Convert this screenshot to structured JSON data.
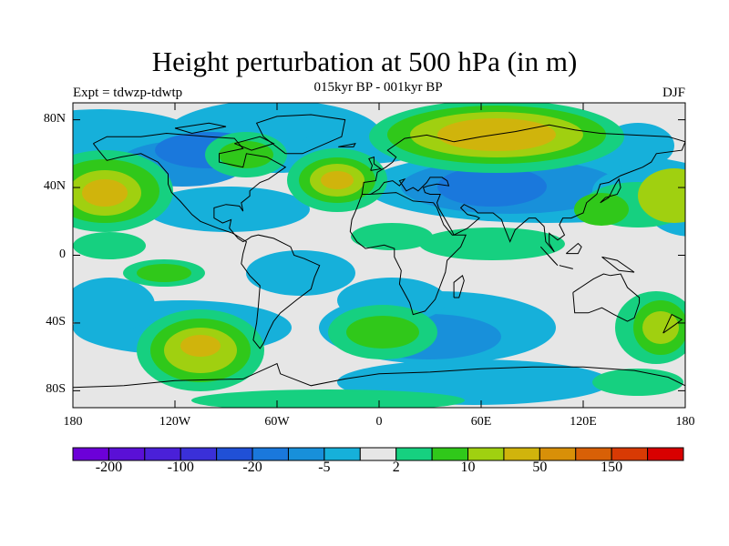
{
  "title": "Height perturbation at 500 hPa (in m)",
  "subtitle": "015kyr BP - 001kyr BP",
  "left_label": "Expt = tdwzp-tdwtp",
  "right_label": "DJF",
  "map": {
    "projection": "cylindrical-equidistant",
    "lon_range": [
      -180,
      180
    ],
    "lat_range": [
      -90,
      90
    ],
    "lat_ticks": [
      {
        "value": 80,
        "label": "80N"
      },
      {
        "value": 40,
        "label": "40N"
      },
      {
        "value": 0,
        "label": "0"
      },
      {
        "value": -40,
        "label": "40S"
      },
      {
        "value": -80,
        "label": "80S"
      }
    ],
    "lon_ticks": [
      {
        "value": -180,
        "label": "180"
      },
      {
        "value": -120,
        "label": "120W"
      },
      {
        "value": -60,
        "label": "60W"
      },
      {
        "value": 0,
        "label": "0"
      },
      {
        "value": 60,
        "label": "60E"
      },
      {
        "value": 120,
        "label": "120E"
      },
      {
        "value": 180,
        "label": "180"
      }
    ],
    "background_color": "#e6e6e6",
    "coastline_color": "#000000"
  },
  "colorbar": {
    "colors": [
      "#6c00d8",
      "#5a10d6",
      "#4a20d8",
      "#3a30d8",
      "#2050d6",
      "#1a78dc",
      "#1890da",
      "#16b0da",
      "#e6e6e6",
      "#16d080",
      "#30c81a",
      "#a0d010",
      "#d0b40c",
      "#d89008",
      "#d86006",
      "#d83a04",
      "#d80000"
    ],
    "tick_labels": [
      "-200",
      "-100",
      "-20",
      "-5",
      "2",
      "10",
      "50",
      "150"
    ]
  }
}
